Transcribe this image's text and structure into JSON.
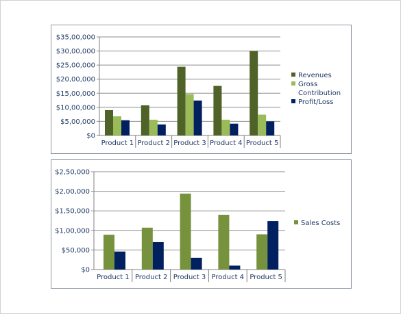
{
  "chart_data": [
    {
      "type": "bar",
      "categories": [
        "Product 1",
        "Product 2",
        "Product 3",
        "Product 4",
        "Product 5"
      ],
      "series": [
        {
          "name": "Revenues",
          "color": "#4f6228",
          "values": [
            900000,
            1070000,
            2440000,
            1760000,
            3000000
          ]
        },
        {
          "name": "Gross Contribution",
          "color": "#9bbb59",
          "values": [
            680000,
            560000,
            1470000,
            560000,
            740000
          ]
        },
        {
          "name": "Profit/Loss",
          "color": "#002060",
          "values": [
            540000,
            390000,
            1240000,
            420000,
            500000
          ]
        }
      ],
      "legend_labels": [
        [
          "Revenues"
        ],
        [
          "Gross",
          "Contribution"
        ],
        [
          "Profit/Loss"
        ]
      ],
      "yticks": [
        "$0",
        "$5,00,000",
        "$10,00,000",
        "$15,00,000",
        "$20,00,000",
        "$25,00,000",
        "$30,00,000",
        "$35,00,000"
      ],
      "ylim": [
        0,
        3500000
      ],
      "grid": true,
      "legend_position": "right"
    },
    {
      "type": "bar",
      "categories": [
        "Product 1",
        "Product 2",
        "Product 3",
        "Product 4",
        "Product 5"
      ],
      "series": [
        {
          "name": "",
          "color": "#76923c",
          "values": [
            89000,
            107000,
            194000,
            140000,
            90000
          ]
        },
        {
          "name": "Sales Costs",
          "color": "#002060",
          "values": [
            46000,
            70000,
            30000,
            10000,
            124000
          ]
        }
      ],
      "legend_labels": [
        [
          "Sales Costs"
        ]
      ],
      "legend_colors": [
        "#76923c"
      ],
      "yticks": [
        "$0",
        "$50,000",
        "$1,00,000",
        "$1,50,000",
        "$2,00,000",
        "$2,50,000"
      ],
      "ylim": [
        0,
        250000
      ],
      "grid": true,
      "legend_position": "right"
    }
  ]
}
